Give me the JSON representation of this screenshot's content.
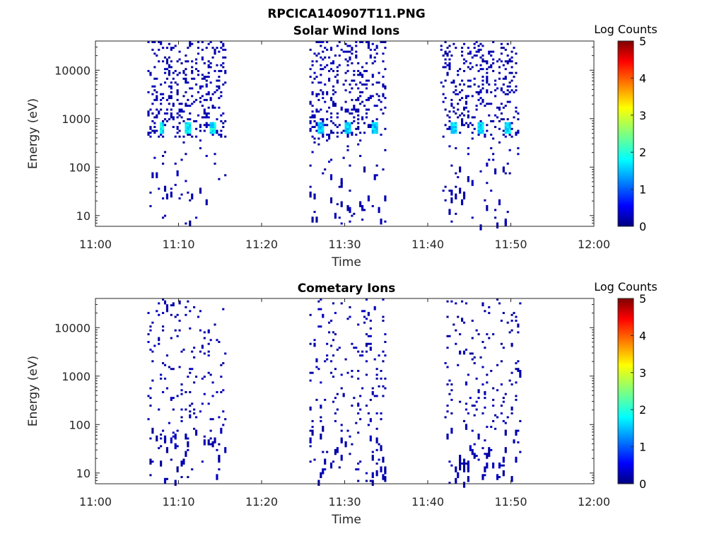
{
  "figure_title": "RPCICA140907T11.PNG",
  "chart_data": [
    {
      "type": "heatmap",
      "title": "Solar Wind Ions",
      "xlabel": "Time",
      "ylabel": "Energy (eV)",
      "x_ticks": [
        "11:00",
        "11:10",
        "11:20",
        "11:30",
        "11:40",
        "11:50",
        "12:00"
      ],
      "xlim_minutes": [
        0,
        60
      ],
      "y_scale": "log",
      "y_ticks": [
        "10",
        "100",
        "1000",
        "10000"
      ],
      "ylim": [
        6,
        40000
      ],
      "colorbar": {
        "label": "Log Counts",
        "ticks": [
          "0",
          "1",
          "2",
          "3",
          "4",
          "5"
        ],
        "range": [
          0,
          5
        ],
        "colormap": "jet"
      },
      "bursts": [
        {
          "start_min": 6.3,
          "end_min": 15.8,
          "peak_minutes": [
            8.0,
            11.1,
            14.1
          ],
          "peak_energy_ev": 620,
          "peak_log_counts": 2.1
        },
        {
          "start_min": 25.8,
          "end_min": 35.0,
          "peak_minutes": [
            27.1,
            30.4,
            33.6
          ],
          "peak_energy_ev": 620,
          "peak_log_counts": 1.9
        },
        {
          "start_min": 41.5,
          "end_min": 51.1,
          "peak_minutes": [
            43.1,
            46.4,
            49.6
          ],
          "peak_energy_ev": 620,
          "peak_log_counts": 2.0
        }
      ],
      "background_log_counts": 0.1
    },
    {
      "type": "heatmap",
      "title": "Cometary Ions",
      "xlabel": "Time",
      "ylabel": "Energy (eV)",
      "x_ticks": [
        "11:00",
        "11:10",
        "11:20",
        "11:30",
        "11:40",
        "11:50",
        "12:00"
      ],
      "xlim_minutes": [
        0,
        60
      ],
      "y_scale": "log",
      "y_ticks": [
        "10",
        "100",
        "1000",
        "10000"
      ],
      "ylim": [
        6,
        40000
      ],
      "colorbar": {
        "label": "Log Counts",
        "ticks": [
          "0",
          "1",
          "2",
          "3",
          "4",
          "5"
        ],
        "range": [
          0,
          5
        ],
        "colormap": "jet"
      },
      "bursts": [
        {
          "start_min": 6.2,
          "end_min": 15.8,
          "peak_minutes": [],
          "peak_energy_ev": 0,
          "peak_log_counts": 0.1
        },
        {
          "start_min": 25.7,
          "end_min": 35.1,
          "peak_minutes": [],
          "peak_energy_ev": 0,
          "peak_log_counts": 0.1
        },
        {
          "start_min": 41.9,
          "end_min": 51.2,
          "peak_minutes": [],
          "peak_energy_ev": 0,
          "peak_log_counts": 0.1
        }
      ],
      "background_log_counts": 0.1
    }
  ]
}
